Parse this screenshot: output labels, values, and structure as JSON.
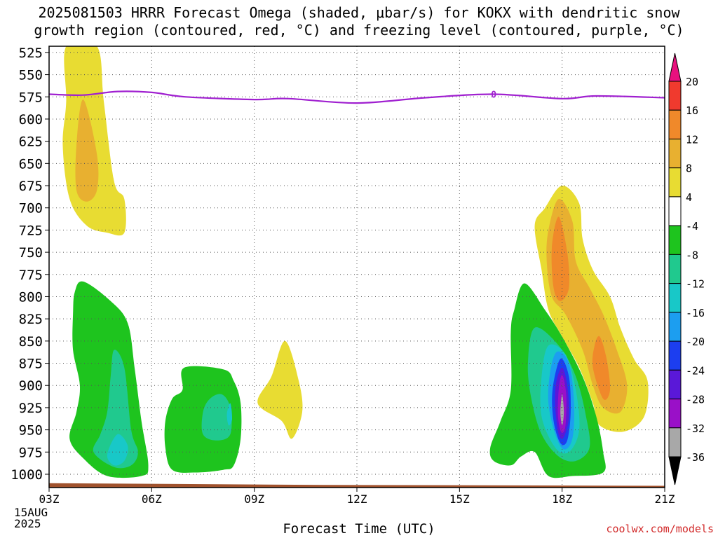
{
  "chart_data": {
    "type": "contour",
    "title_lines": [
      "2025081503 HRRR Forecast Omega (shaded, μbar/s) for KOKX with dendritic snow",
      "growth region (contoured, red, °C) and freezing level (contoured, purple, °C)"
    ],
    "xlabel": "Forecast Time (UTC)",
    "x_ticks": [
      "03Z",
      "06Z",
      "09Z",
      "12Z",
      "15Z",
      "18Z",
      "21Z"
    ],
    "x_tick_hours": [
      3,
      6,
      9,
      12,
      15,
      18,
      21
    ],
    "x_subtitle_lines": [
      "15AUG",
      "2025"
    ],
    "xlim": [
      3,
      21
    ],
    "ylabel": "",
    "y_ticks": [
      525,
      550,
      575,
      600,
      625,
      650,
      675,
      700,
      725,
      750,
      775,
      800,
      825,
      850,
      875,
      900,
      925,
      950,
      975,
      1000
    ],
    "ylim": [
      1015,
      518
    ],
    "grid": true,
    "colorbar": {
      "labels": [
        "20",
        "16",
        "12",
        "8",
        "4",
        "-4",
        "-8",
        "-12",
        "-16",
        "-20",
        "-24",
        "-28",
        "-32",
        "-36"
      ],
      "colors": [
        "#e8107e",
        "#f03a2e",
        "#f0892a",
        "#e8b030",
        "#e8dc32",
        "#ffffff",
        "#1ec41e",
        "#20c98e",
        "#18c8c8",
        "#1c9ef0",
        "#1c3ef0",
        "#5a18d8",
        "#9a10c8",
        "#a8a8a8",
        "#000000"
      ]
    },
    "freezing_level": {
      "label": "0",
      "color": "#a020d0",
      "points": [
        [
          3,
          572
        ],
        [
          4,
          573
        ],
        [
          5,
          569
        ],
        [
          6,
          570
        ],
        [
          7,
          575
        ],
        [
          9,
          578
        ],
        [
          10,
          577
        ],
        [
          12,
          582
        ],
        [
          14,
          576
        ],
        [
          16,
          572
        ],
        [
          18,
          577
        ],
        [
          19,
          574
        ],
        [
          21,
          576
        ]
      ]
    },
    "shaded_regions": [
      {
        "color": "#e8dc32",
        "points": [
          [
            3.5,
            518
          ],
          [
            4.4,
            518
          ],
          [
            4.6,
            580
          ],
          [
            4.9,
            670
          ],
          [
            5.2,
            690
          ],
          [
            5.2,
            728
          ],
          [
            4.7,
            728
          ],
          [
            4.1,
            720
          ],
          [
            3.6,
            690
          ],
          [
            3.4,
            630
          ],
          [
            3.5,
            580
          ]
        ]
      },
      {
        "color": "#e8b030",
        "points": [
          [
            4.0,
            578
          ],
          [
            4.4,
            640
          ],
          [
            4.4,
            680
          ],
          [
            4.1,
            693
          ],
          [
            3.8,
            680
          ],
          [
            3.8,
            630
          ]
        ]
      },
      {
        "color": "#1ec41e",
        "points": [
          [
            4.0,
            783
          ],
          [
            4.8,
            805
          ],
          [
            5.3,
            830
          ],
          [
            5.5,
            880
          ],
          [
            5.7,
            940
          ],
          [
            5.9,
            990
          ],
          [
            5.7,
            1002
          ],
          [
            4.7,
            1002
          ],
          [
            4.0,
            982
          ],
          [
            3.6,
            960
          ],
          [
            3.8,
            930
          ],
          [
            3.9,
            900
          ],
          [
            3.7,
            860
          ],
          [
            3.7,
            820
          ],
          [
            3.75,
            795
          ]
        ]
      },
      {
        "color": "#20c98e",
        "points": [
          [
            4.9,
            860
          ],
          [
            5.2,
            880
          ],
          [
            5.4,
            950
          ],
          [
            5.6,
            975
          ],
          [
            5.4,
            990
          ],
          [
            4.9,
            992
          ],
          [
            4.3,
            975
          ],
          [
            4.5,
            955
          ],
          [
            4.7,
            930
          ],
          [
            4.8,
            890
          ]
        ]
      },
      {
        "color": "#18c8c8",
        "points": [
          [
            5.0,
            955
          ],
          [
            5.3,
            968
          ],
          [
            5.2,
            985
          ],
          [
            4.9,
            990
          ],
          [
            4.7,
            978
          ]
        ]
      },
      {
        "color": "#1ec41e",
        "points": [
          [
            6.95,
            880
          ],
          [
            8.1,
            882
          ],
          [
            8.4,
            895
          ],
          [
            8.6,
            920
          ],
          [
            8.6,
            960
          ],
          [
            8.4,
            990
          ],
          [
            8.1,
            995
          ],
          [
            7.3,
            998
          ],
          [
            6.6,
            995
          ],
          [
            6.4,
            970
          ],
          [
            6.4,
            940
          ],
          [
            6.6,
            915
          ],
          [
            6.9,
            905
          ]
        ]
      },
      {
        "color": "#20c98e",
        "points": [
          [
            8.05,
            910
          ],
          [
            8.3,
            925
          ],
          [
            8.3,
            955
          ],
          [
            7.9,
            962
          ],
          [
            7.5,
            955
          ],
          [
            7.5,
            930
          ],
          [
            7.7,
            915
          ]
        ]
      },
      {
        "color": "#18c8c8",
        "points": [
          [
            8.3,
            920
          ],
          [
            8.35,
            938
          ],
          [
            8.25,
            945
          ],
          [
            8.2,
            932
          ]
        ]
      },
      {
        "color": "#e8dc32",
        "points": [
          [
            9.9,
            850
          ],
          [
            10.3,
            895
          ],
          [
            10.4,
            930
          ],
          [
            10.1,
            960
          ],
          [
            9.8,
            940
          ],
          [
            9.1,
            920
          ],
          [
            9.5,
            890
          ]
        ]
      },
      {
        "color": "#e8dc32",
        "points": [
          [
            18.0,
            675
          ],
          [
            18.5,
            695
          ],
          [
            18.6,
            735
          ],
          [
            18.9,
            770
          ],
          [
            19.4,
            800
          ],
          [
            19.7,
            835
          ],
          [
            20.1,
            870
          ],
          [
            20.5,
            895
          ],
          [
            20.4,
            935
          ],
          [
            19.8,
            952
          ],
          [
            19.1,
            945
          ],
          [
            18.9,
            920
          ],
          [
            18.5,
            880
          ],
          [
            18.0,
            845
          ],
          [
            17.6,
            815
          ],
          [
            17.4,
            770
          ],
          [
            17.2,
            720
          ],
          [
            17.5,
            700
          ]
        ]
      },
      {
        "color": "#e8b030",
        "points": [
          [
            17.9,
            690
          ],
          [
            18.3,
            715
          ],
          [
            18.4,
            760
          ],
          [
            18.8,
            790
          ],
          [
            19.2,
            820
          ],
          [
            19.6,
            860
          ],
          [
            19.9,
            900
          ],
          [
            19.7,
            930
          ],
          [
            19.2,
            925
          ],
          [
            18.9,
            900
          ],
          [
            18.6,
            860
          ],
          [
            18.1,
            820
          ],
          [
            17.7,
            800
          ],
          [
            17.55,
            760
          ],
          [
            17.6,
            725
          ]
        ]
      },
      {
        "color": "#f0892a",
        "points": [
          [
            17.9,
            710
          ],
          [
            18.15,
            750
          ],
          [
            18.2,
            790
          ],
          [
            17.95,
            805
          ],
          [
            17.75,
            790
          ],
          [
            17.7,
            745
          ]
        ]
      },
      {
        "color": "#f0892a",
        "points": [
          [
            19.1,
            845
          ],
          [
            19.3,
            870
          ],
          [
            19.4,
            905
          ],
          [
            19.2,
            915
          ],
          [
            18.9,
            880
          ],
          [
            18.95,
            855
          ]
        ]
      },
      {
        "color": "#1ec41e",
        "points": [
          [
            16.9,
            785
          ],
          [
            17.5,
            815
          ],
          [
            18.0,
            845
          ],
          [
            18.6,
            890
          ],
          [
            19.0,
            935
          ],
          [
            19.2,
            975
          ],
          [
            19.2,
            998
          ],
          [
            18.3,
            1002
          ],
          [
            17.6,
            1002
          ],
          [
            17.2,
            975
          ],
          [
            16.8,
            980
          ],
          [
            16.5,
            990
          ],
          [
            16.0,
            985
          ],
          [
            15.9,
            970
          ],
          [
            16.2,
            940
          ],
          [
            16.5,
            905
          ],
          [
            16.5,
            840
          ],
          [
            16.6,
            815
          ]
        ]
      },
      {
        "color": "#20c98e",
        "points": [
          [
            17.2,
            835
          ],
          [
            17.9,
            855
          ],
          [
            18.4,
            890
          ],
          [
            18.7,
            935
          ],
          [
            18.8,
            970
          ],
          [
            18.4,
            985
          ],
          [
            17.9,
            980
          ],
          [
            17.4,
            955
          ],
          [
            17.1,
            915
          ],
          [
            17.0,
            875
          ]
        ]
      },
      {
        "color": "#18c8c8",
        "points": [
          [
            17.6,
            855
          ],
          [
            18.1,
            865
          ],
          [
            18.4,
            905
          ],
          [
            18.5,
            950
          ],
          [
            18.2,
            975
          ],
          [
            17.8,
            970
          ],
          [
            17.4,
            935
          ],
          [
            17.4,
            890
          ]
        ]
      },
      {
        "color": "#1c9ef0",
        "points": [
          [
            17.85,
            862
          ],
          [
            18.2,
            875
          ],
          [
            18.35,
            920
          ],
          [
            18.3,
            960
          ],
          [
            18.05,
            972
          ],
          [
            17.8,
            955
          ],
          [
            17.6,
            920
          ],
          [
            17.65,
            885
          ]
        ]
      },
      {
        "color": "#1c3ef0",
        "points": [
          [
            17.95,
            870
          ],
          [
            18.2,
            890
          ],
          [
            18.25,
            930
          ],
          [
            18.15,
            962
          ],
          [
            17.95,
            965
          ],
          [
            17.75,
            940
          ],
          [
            17.72,
            905
          ]
        ]
      },
      {
        "color": "#5a18d8",
        "points": [
          [
            18.0,
            880
          ],
          [
            18.15,
            900
          ],
          [
            18.2,
            935
          ],
          [
            18.05,
            958
          ],
          [
            17.9,
            955
          ],
          [
            17.8,
            925
          ],
          [
            17.82,
            898
          ]
        ]
      },
      {
        "color": "#9a10c8",
        "points": [
          [
            18.0,
            888
          ],
          [
            18.12,
            910
          ],
          [
            18.1,
            945
          ],
          [
            17.98,
            953
          ],
          [
            17.88,
            935
          ],
          [
            17.9,
            905
          ]
        ]
      },
      {
        "color": "#a8a8a8",
        "points": [
          [
            18.0,
            910
          ],
          [
            18.05,
            930
          ],
          [
            18.0,
            945
          ],
          [
            17.95,
            930
          ]
        ]
      }
    ],
    "terrain": {
      "color": "#a0522d",
      "points": [
        [
          3,
          1010
        ],
        [
          11,
          1012
        ],
        [
          21,
          1013
        ]
      ]
    }
  },
  "watermark": "coolwx.com/models"
}
